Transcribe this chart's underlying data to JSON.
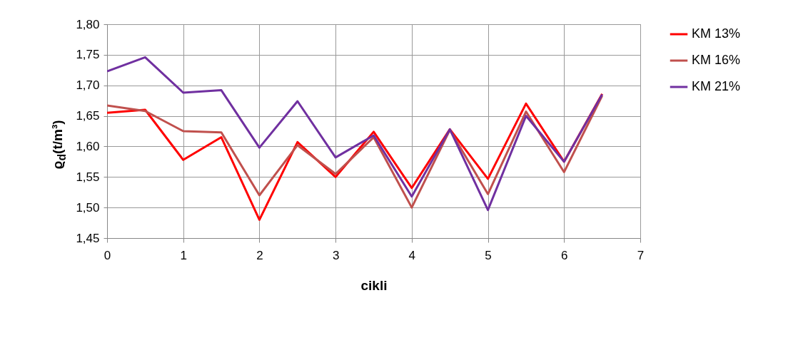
{
  "chart_data": {
    "type": "line",
    "xlabel": "cikli",
    "ylabel": "ϱ$_{d}$(t/m³)",
    "x": [
      0,
      0.5,
      1,
      1.5,
      2,
      2.5,
      3,
      3.5,
      4,
      4.5,
      5,
      5.5,
      6,
      6.5
    ],
    "series": [
      {
        "name": "KM 13%",
        "color": "#ff0000",
        "values": [
          1.655,
          1.66,
          1.578,
          1.615,
          1.48,
          1.607,
          1.55,
          1.624,
          1.532,
          1.628,
          1.547,
          1.67,
          1.575,
          1.686
        ]
      },
      {
        "name": "KM 16%",
        "color": "#c0504d",
        "values": [
          1.667,
          1.658,
          1.625,
          1.623,
          1.52,
          1.602,
          1.555,
          1.615,
          1.5,
          1.627,
          1.522,
          1.657,
          1.558,
          1.683
        ]
      },
      {
        "name": "KM 21%",
        "color": "#7030a0",
        "values": [
          1.723,
          1.746,
          1.688,
          1.692,
          1.598,
          1.674,
          1.582,
          1.618,
          1.518,
          1.628,
          1.496,
          1.65,
          1.575,
          1.685
        ]
      }
    ],
    "xlim": [
      0,
      7
    ],
    "xticks": [
      0,
      1,
      2,
      3,
      4,
      5,
      6,
      7
    ],
    "ylim": [
      1.45,
      1.8
    ],
    "yticks": [
      {
        "value": 1.45,
        "label": "1,45"
      },
      {
        "value": 1.5,
        "label": "1,50"
      },
      {
        "value": 1.55,
        "label": "1,55"
      },
      {
        "value": 1.6,
        "label": "1,60"
      },
      {
        "value": 1.65,
        "label": "1,65"
      },
      {
        "value": 1.7,
        "label": "1,70"
      },
      {
        "value": 1.75,
        "label": "1,75"
      },
      {
        "value": 1.8,
        "label": "1,80"
      }
    ],
    "grid": true,
    "legend": "right",
    "marker": "none",
    "line_style": "solid"
  }
}
